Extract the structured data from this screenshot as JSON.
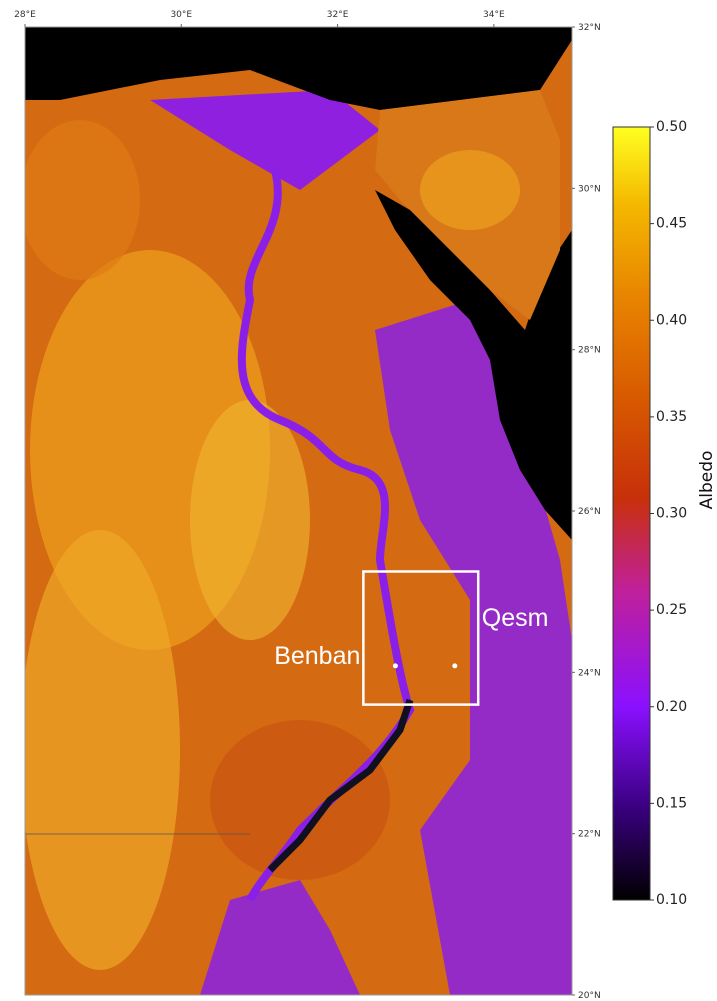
{
  "map": {
    "xlim": [
      28,
      35
    ],
    "ylim": [
      20,
      32
    ],
    "xticks": [
      {
        "value": 28,
        "label": "28°E"
      },
      {
        "value": 30,
        "label": "30°E"
      },
      {
        "value": 32,
        "label": "32°E"
      },
      {
        "value": 34,
        "label": "34°E"
      }
    ],
    "yticks": [
      {
        "value": 32,
        "label": "32°N"
      },
      {
        "value": 30,
        "label": "30°N"
      },
      {
        "value": 28,
        "label": "28°N"
      },
      {
        "value": 26,
        "label": "26°N"
      },
      {
        "value": 24,
        "label": "24°N"
      },
      {
        "value": 22,
        "label": "22°N"
      },
      {
        "value": 20,
        "label": "20°N"
      }
    ],
    "box": {
      "lon": [
        32.33,
        33.8
      ],
      "lat": [
        23.6,
        25.25
      ]
    },
    "sites": [
      {
        "label": "Benban",
        "lon": 32.74,
        "lat": 24.08
      },
      {
        "label": "Qesm",
        "lon": 33.5,
        "lat": 24.08
      }
    ]
  },
  "colorbar": {
    "label": "Albedo",
    "clim": [
      0.1,
      0.5
    ],
    "ticks": [
      {
        "value": 0.1,
        "label": "0.10"
      },
      0.15,
      {
        "value": 0.2,
        "label": "0.20"
      },
      0.25,
      {
        "value": 0.3,
        "label": "0.30"
      },
      0.35,
      {
        "value": 0.4,
        "label": "0.40"
      },
      0.45,
      {
        "value": 0.5,
        "label": "0.50"
      }
    ]
  }
}
